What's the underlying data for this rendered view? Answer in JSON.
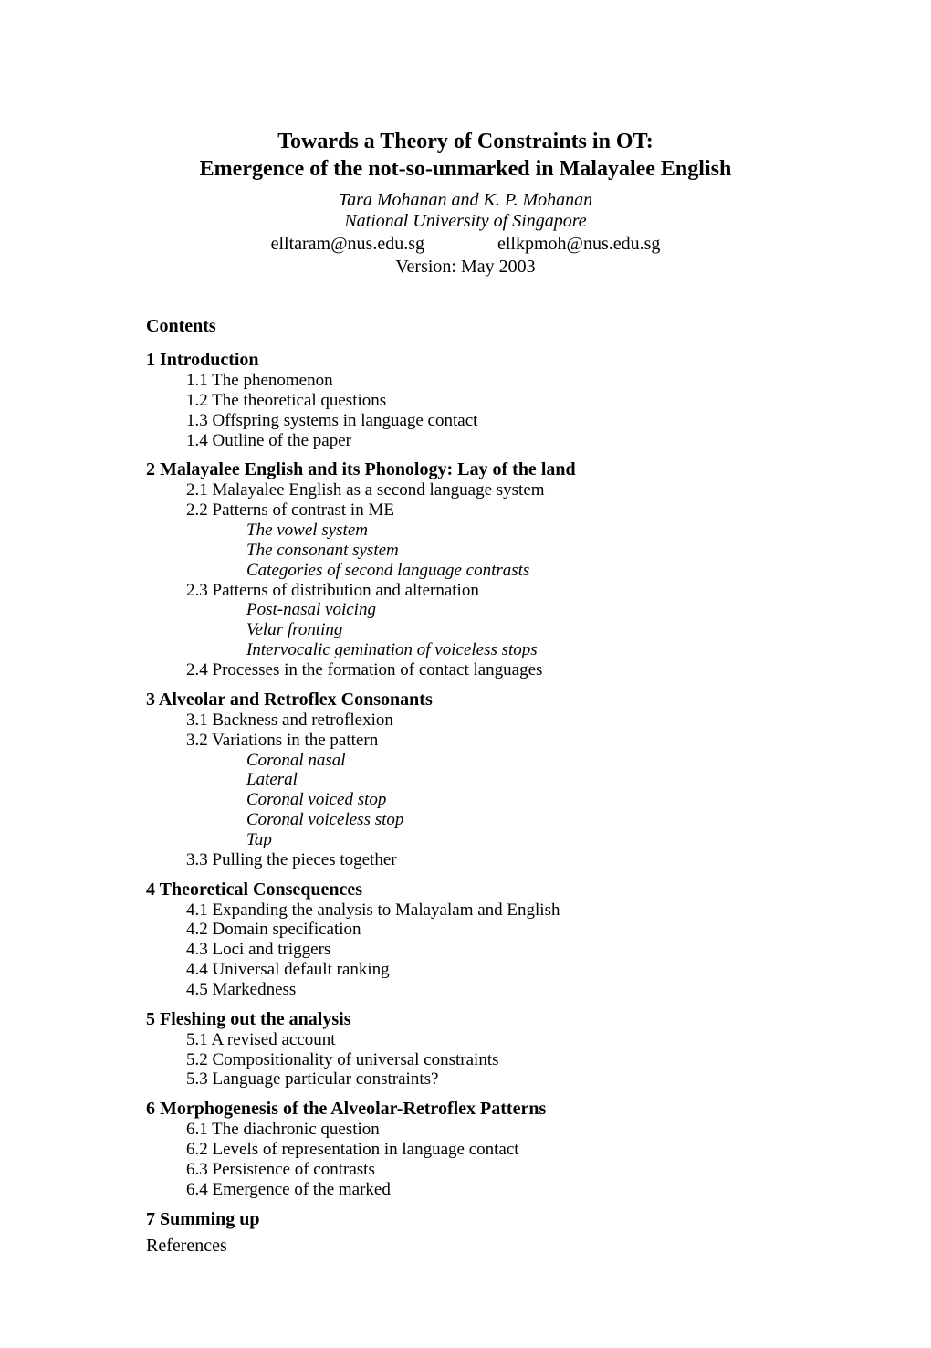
{
  "title_line1": "Towards a Theory of Constraints in OT:",
  "title_line2": "Emergence of the not-so-unmarked in Malayalee English",
  "authors": "Tara Mohanan and K. P. Mohanan",
  "affiliation": "National University of Singapore",
  "email1": "elltaram@nus.edu.sg",
  "email2": "ellkpmoh@nus.edu.sg",
  "version": "Version: May 2003",
  "contents_heading": "Contents",
  "sections": {
    "s1": {
      "heading": "1 Introduction",
      "subs": {
        "a": "1.1 The phenomenon",
        "b": "1.2 The theoretical questions",
        "c": "1.3 Offspring systems in language contact",
        "d": "1.4 Outline of the paper"
      }
    },
    "s2": {
      "heading": "2 Malayalee English and its Phonology: Lay of the land",
      "subs": {
        "a": "2.1 Malayalee English as a second language system",
        "b": "2.2 Patterns of contrast in ME",
        "b_sub": {
          "i": "The vowel system",
          "ii": "The consonant system",
          "iii": "Categories of second language contrasts"
        },
        "c": "2.3 Patterns of distribution and alternation",
        "c_sub": {
          "i": "Post-nasal voicing",
          "ii": "Velar fronting",
          "iii": "Intervocalic gemination of voiceless stops"
        },
        "d": "2.4 Processes in the formation of contact languages"
      }
    },
    "s3": {
      "heading": "3 Alveolar and Retroflex Consonants",
      "subs": {
        "a": "3.1  Backness and retroflexion",
        "b": "3.2 Variations in the pattern",
        "b_sub": {
          "i": "Coronal nasal",
          "ii": "Lateral",
          "iii": "Coronal voiced stop",
          "iv": "Coronal voiceless stop",
          "v": "Tap"
        },
        "c": "3.3 Pulling the pieces together"
      }
    },
    "s4": {
      "heading": "4 Theoretical Consequences",
      "subs": {
        "a": "4.1 Expanding the analysis to Malayalam and English",
        "b": "4.2 Domain specification",
        "c": "4.3 Loci and triggers",
        "d": "4.4 Universal default ranking",
        "e": "4.5 Markedness"
      }
    },
    "s5": {
      "heading": "5 Fleshing out the analysis",
      "subs": {
        "a": "5.1 A revised account",
        "b": "5.2 Compositionality of universal constraints",
        "c": "5.3 Language particular constraints?"
      }
    },
    "s6": {
      "heading": "6 Morphogenesis of the Alveolar-Retroflex Patterns",
      "subs": {
        "a": "6.1 The diachronic question",
        "b": "6.2 Levels of representation in language contact",
        "c": "6.3 Persistence of contrasts",
        "d": "6.4 Emergence of the marked"
      }
    },
    "s7": {
      "heading": "7 Summing up"
    }
  },
  "references": "References"
}
